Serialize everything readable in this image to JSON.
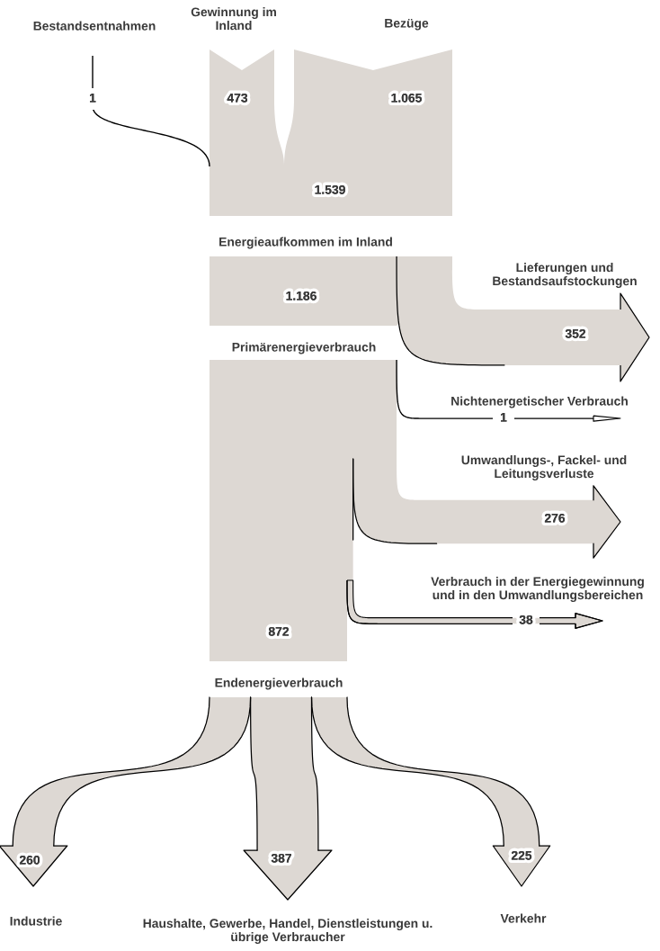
{
  "chart_data": {
    "type": "other",
    "color": "#ddd8d3",
    "categories": [
      "Bestandsentnahmen",
      "Gewinnung im\nInland",
      "Bezüge",
      "Energieaufkommen im Inland",
      "Lieferungen und\nBestandsaufstockungen",
      "Primärenergieverbrauch",
      "Nichtenergetischer Verbrauch",
      "Umwandlungs-, Fackel- und\nLeitungsverluste",
      "Verbrauch in der Energiegewinnung\nund in den Umwandlungsbereichen",
      "Endenergieverbrauch",
      "Industrie",
      "Haushalte, Gewerbe, Handel, Dienstleistungen u.\nübrige Verbraucher",
      "Verkehr"
    ],
    "values": [
      1,
      473,
      1065,
      1539,
      352,
      1186,
      1,
      276,
      38,
      872,
      260,
      387,
      225
    ],
    "value_labels": [
      "1",
      "473",
      "1.065",
      "1.539",
      "352",
      "1.186",
      "1",
      "276",
      "38",
      "872",
      "260",
      "387",
      "225"
    ],
    "data_labels": true
  }
}
